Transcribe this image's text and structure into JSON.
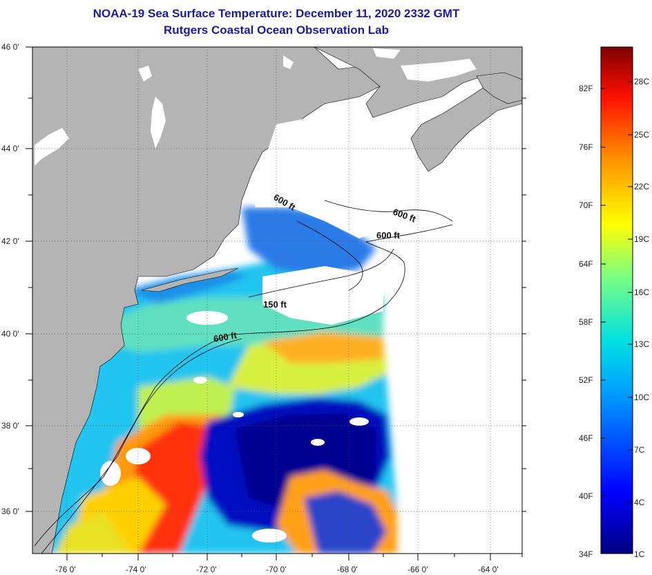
{
  "title": {
    "line1": "NOAA-19 Sea Surface Temperature:  December 11, 2020 2332 GMT",
    "line2": "Rutgers Coastal Ocean Observation Lab"
  },
  "map": {
    "lat_labels": [
      "46 0'",
      "44 0'",
      "42 0'",
      "40 0'",
      "38 0'",
      "36 0'"
    ],
    "lon_labels": [
      "-76 0'",
      "-74 0'",
      "-72 0'",
      "-70 0'",
      "-68 0'",
      "-66 0'",
      "-64 0'"
    ],
    "contour_labels": [
      "600 ft",
      "600 ft",
      "600 ft",
      "150 ft",
      "600 ft"
    ],
    "colors": {
      "land": "#b4b4b4",
      "cloud": "#ffffff",
      "frame": "#000000"
    }
  },
  "colorbar": {
    "fahrenheit": [
      "82F",
      "76F",
      "70F",
      "64F",
      "58F",
      "52F",
      "46F",
      "40F",
      "34F"
    ],
    "celsius": [
      "28C",
      "25C",
      "22C",
      "19C",
      "16C",
      "13C",
      "10C",
      "7C",
      "4C",
      "1C"
    ]
  }
}
